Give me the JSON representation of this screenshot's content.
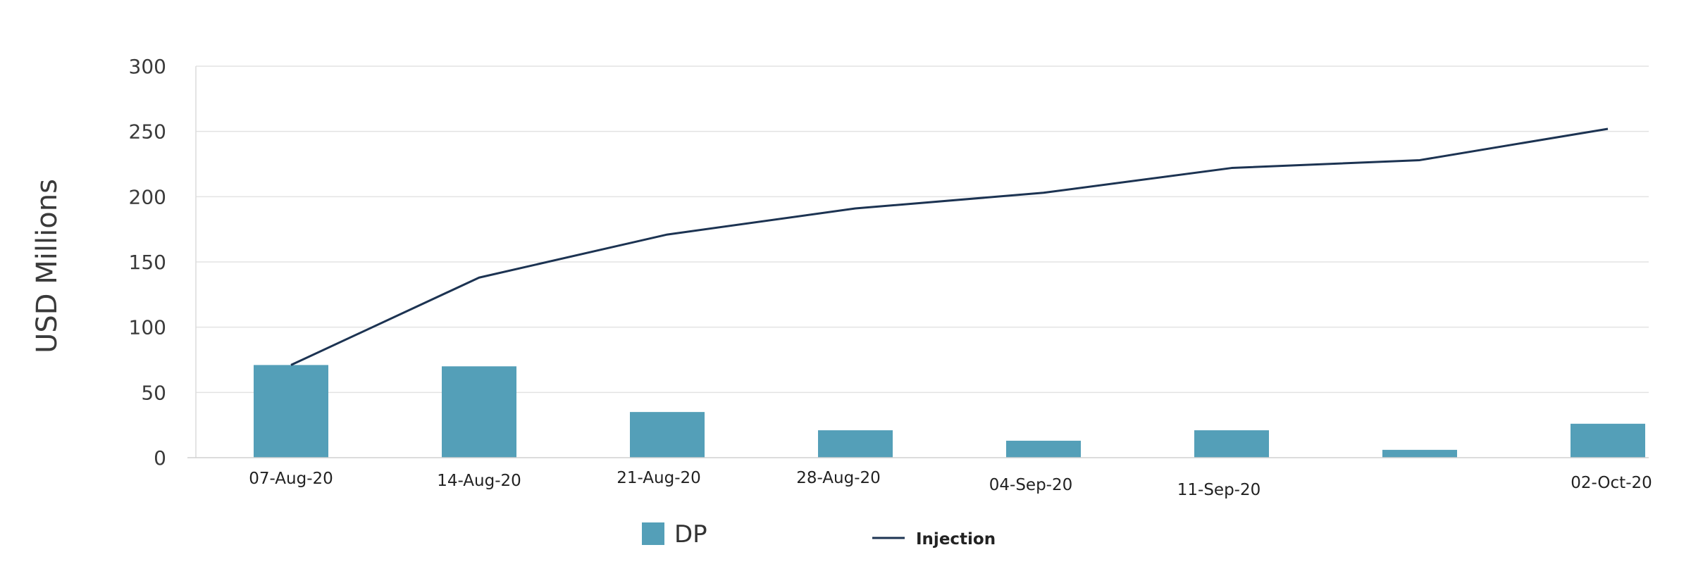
{
  "chart_data": {
    "type": "bar",
    "ylabel": "USD Millions",
    "ylim": [
      0,
      300
    ],
    "yticks": [
      0,
      50,
      100,
      150,
      200,
      250,
      300
    ],
    "grid": true,
    "legend_placement": "bottom-center",
    "x": [
      "2020-08-07",
      "2020-08-14",
      "2020-08-21",
      "2020-08-28",
      "2020-09-04",
      "2020-09-11",
      "2020-09-25",
      "2020-10-02"
    ],
    "tick_labels": [
      "07-Aug-20",
      "14-Aug-20",
      "21-Aug-20",
      "28-Aug-20",
      "04-Sep-20",
      "11-Sep-20",
      "",
      "02-Oct-20"
    ],
    "series": [
      {
        "name": "DP",
        "kind": "bar",
        "color": "#549fb8",
        "values": [
          71,
          70,
          35,
          21,
          13,
          21,
          6,
          26
        ]
      },
      {
        "name": "Injection",
        "kind": "line",
        "color": "#1c3352",
        "values": [
          71,
          138,
          171,
          191,
          203,
          222,
          228,
          252
        ]
      }
    ]
  }
}
